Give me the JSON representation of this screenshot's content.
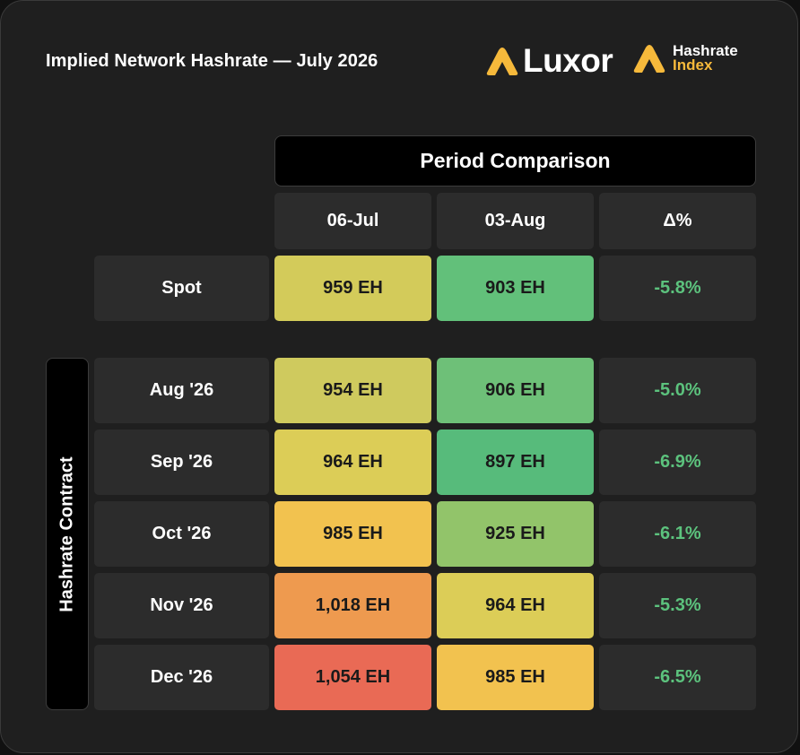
{
  "header": {
    "title": "Implied Network Hashrate — July 2026",
    "brand_luxor": "Luxor",
    "brand_hi_line1": "Hashrate",
    "brand_hi_line2": "Index"
  },
  "table": {
    "group_header": "Period Comparison",
    "columns": [
      "06-Jul",
      "03-Aug",
      "Δ%"
    ],
    "side_label": "Hashrate Contract",
    "spot": {
      "label": "Spot",
      "v1": "959 EH",
      "v2": "903 EH",
      "delta": "-5.8%",
      "c1": "#d3cb5a",
      "c2": "#62c07a"
    },
    "rows": [
      {
        "label": "Aug '26",
        "v1": "954 EH",
        "v2": "906 EH",
        "delta": "-5.0%",
        "c1": "#cfca5e",
        "c2": "#6ec078"
      },
      {
        "label": "Sep '26",
        "v1": "964 EH",
        "v2": "897 EH",
        "delta": "-6.9%",
        "c1": "#dccd57",
        "c2": "#57bb7b"
      },
      {
        "label": "Oct '26",
        "v1": "985 EH",
        "v2": "925 EH",
        "delta": "-6.1%",
        "c1": "#f2c24f",
        "c2": "#92c46a"
      },
      {
        "label": "Nov '26",
        "v1": "1,018 EH",
        "v2": "964 EH",
        "delta": "-5.3%",
        "c1": "#ee9a4f",
        "c2": "#dccd57"
      },
      {
        "label": "Dec '26",
        "v1": "1,054 EH",
        "v2": "985 EH",
        "delta": "-6.5%",
        "c1": "#e96a55",
        "c2": "#f2c24f"
      }
    ]
  },
  "colors": {
    "accent": "#f6b93b",
    "delta_green": "#5cc27d",
    "card": "#1f1f1f",
    "cell": "#2c2c2c"
  },
  "chart_data": {
    "type": "table",
    "title": "Implied Network Hashrate — July 2026",
    "group_header": "Period Comparison",
    "columns": [
      "06-Jul",
      "03-Aug",
      "Δ%"
    ],
    "row_group": "Hashrate Contract",
    "unit": "EH",
    "rows": [
      {
        "label": "Spot",
        "values": [
          959,
          903
        ],
        "delta_pct": -5.8
      },
      {
        "label": "Aug '26",
        "values": [
          954,
          906
        ],
        "delta_pct": -5.0
      },
      {
        "label": "Sep '26",
        "values": [
          964,
          897
        ],
        "delta_pct": -6.9
      },
      {
        "label": "Oct '26",
        "values": [
          985,
          925
        ],
        "delta_pct": -6.1
      },
      {
        "label": "Nov '26",
        "values": [
          1018,
          964
        ],
        "delta_pct": -5.3
      },
      {
        "label": "Dec '26",
        "values": [
          1054,
          985
        ],
        "delta_pct": -6.5
      }
    ]
  }
}
